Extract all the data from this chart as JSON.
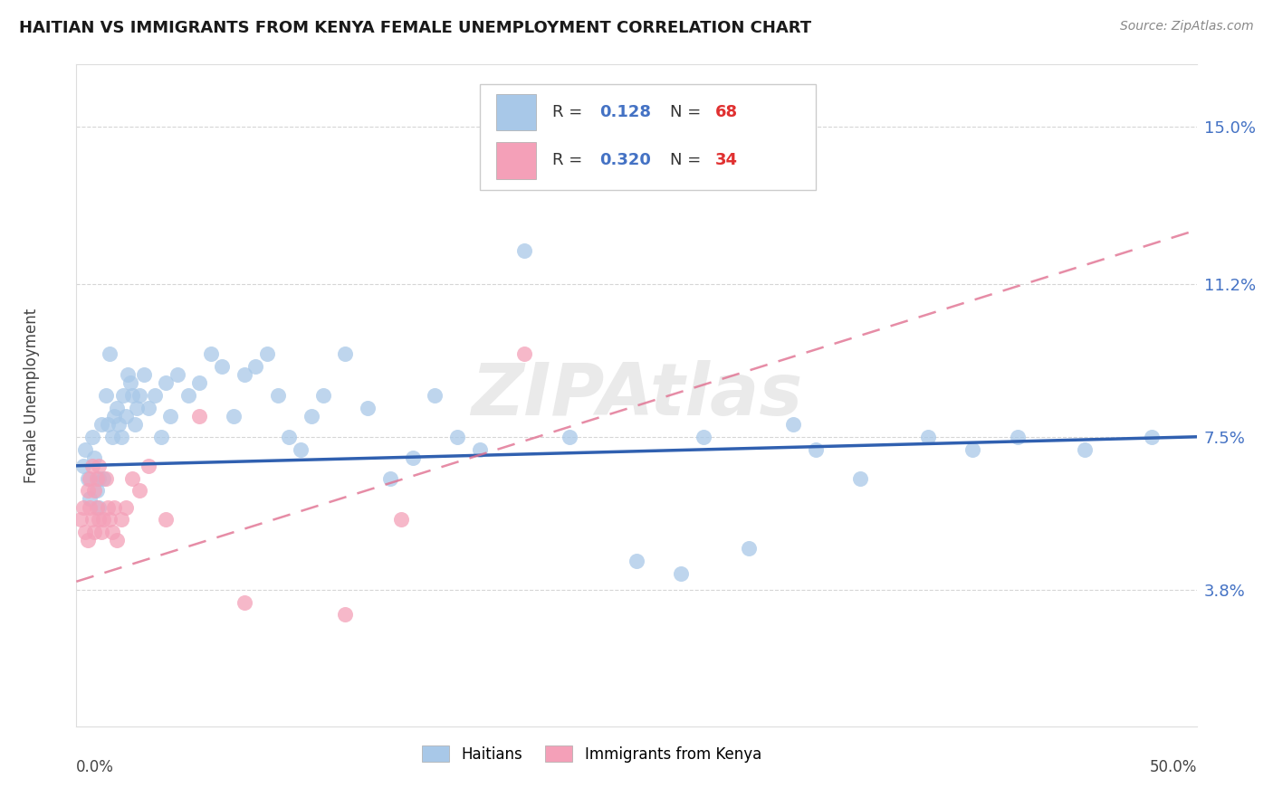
{
  "title": "HAITIAN VS IMMIGRANTS FROM KENYA FEMALE UNEMPLOYMENT CORRELATION CHART",
  "source": "Source: ZipAtlas.com",
  "xlabel_bottom_left": "0.0%",
  "xlabel_bottom_right": "50.0%",
  "ylabel": "Female Unemployment",
  "ytick_labels": [
    "3.8%",
    "7.5%",
    "11.2%",
    "15.0%"
  ],
  "ytick_values": [
    3.8,
    7.5,
    11.2,
    15.0
  ],
  "xlim": [
    0.0,
    50.0
  ],
  "ylim": [
    0.5,
    16.5
  ],
  "legend1_r": "0.128",
  "legend1_n": "68",
  "legend2_r": "0.320",
  "legend2_n": "34",
  "color_blue": "#a8c8e8",
  "color_pink": "#f4a0b8",
  "watermark": "ZIPAtlas",
  "blue_line_start": 6.8,
  "blue_line_end": 7.5,
  "pink_line_start": 4.0,
  "pink_line_end": 12.5,
  "haitians_x": [
    0.3,
    0.4,
    0.5,
    0.6,
    0.7,
    0.8,
    0.9,
    1.0,
    1.0,
    1.1,
    1.2,
    1.3,
    1.4,
    1.5,
    1.6,
    1.7,
    1.8,
    1.9,
    2.0,
    2.1,
    2.2,
    2.3,
    2.4,
    2.5,
    2.6,
    2.7,
    2.8,
    3.0,
    3.2,
    3.5,
    3.8,
    4.0,
    4.2,
    4.5,
    5.0,
    5.5,
    6.0,
    6.5,
    7.0,
    7.5,
    8.0,
    8.5,
    9.0,
    9.5,
    10.0,
    10.5,
    11.0,
    12.0,
    13.0,
    14.0,
    15.0,
    16.0,
    17.0,
    18.0,
    20.0,
    22.0,
    25.0,
    28.0,
    30.0,
    33.0,
    35.0,
    38.0,
    40.0,
    42.0,
    45.0,
    48.0,
    27.0,
    32.0
  ],
  "haitians_y": [
    6.8,
    7.2,
    6.5,
    6.0,
    7.5,
    7.0,
    6.2,
    5.8,
    6.5,
    7.8,
    6.5,
    8.5,
    7.8,
    9.5,
    7.5,
    8.0,
    8.2,
    7.8,
    7.5,
    8.5,
    8.0,
    9.0,
    8.8,
    8.5,
    7.8,
    8.2,
    8.5,
    9.0,
    8.2,
    8.5,
    7.5,
    8.8,
    8.0,
    9.0,
    8.5,
    8.8,
    9.5,
    9.2,
    8.0,
    9.0,
    9.2,
    9.5,
    8.5,
    7.5,
    7.2,
    8.0,
    8.5,
    9.5,
    8.2,
    6.5,
    7.0,
    8.5,
    7.5,
    7.2,
    12.0,
    7.5,
    4.5,
    7.5,
    4.8,
    7.2,
    6.5,
    7.5,
    7.2,
    7.5,
    7.2,
    7.5,
    4.2,
    7.8
  ],
  "kenya_x": [
    0.2,
    0.3,
    0.4,
    0.5,
    0.5,
    0.6,
    0.6,
    0.7,
    0.7,
    0.8,
    0.8,
    0.9,
    0.9,
    1.0,
    1.0,
    1.1,
    1.2,
    1.3,
    1.4,
    1.5,
    1.6,
    1.7,
    1.8,
    2.0,
    2.2,
    2.5,
    2.8,
    3.2,
    4.0,
    5.5,
    7.5,
    12.0,
    14.5,
    20.0
  ],
  "kenya_y": [
    5.5,
    5.8,
    5.2,
    6.2,
    5.0,
    5.8,
    6.5,
    5.5,
    6.8,
    5.2,
    6.2,
    5.8,
    6.5,
    5.5,
    6.8,
    5.2,
    5.5,
    6.5,
    5.8,
    5.5,
    5.2,
    5.8,
    5.0,
    5.5,
    5.8,
    6.5,
    6.2,
    6.8,
    5.5,
    8.0,
    3.5,
    3.2,
    5.5,
    9.5
  ],
  "grid_color": "#cccccc",
  "background_color": "#ffffff",
  "label_color_blue": "#4472c4",
  "label_color_red": "#e03030"
}
